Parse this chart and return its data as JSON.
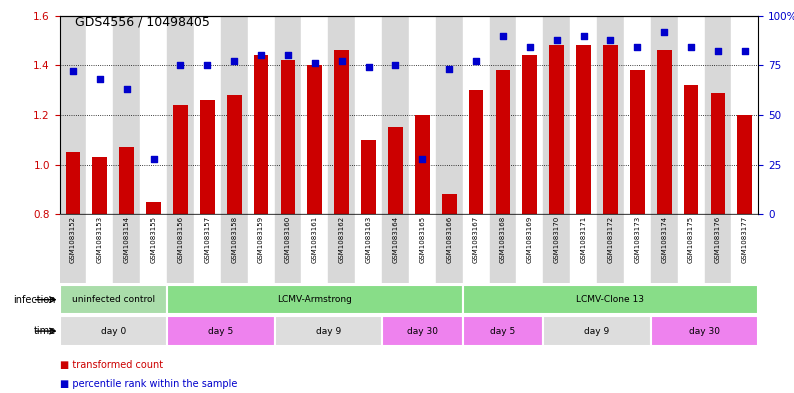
{
  "title": "GDS4556 / 10498405",
  "samples": [
    "GSM1083152",
    "GSM1083153",
    "GSM1083154",
    "GSM1083155",
    "GSM1083156",
    "GSM1083157",
    "GSM1083158",
    "GSM1083159",
    "GSM1083160",
    "GSM1083161",
    "GSM1083162",
    "GSM1083163",
    "GSM1083164",
    "GSM1083165",
    "GSM1083166",
    "GSM1083167",
    "GSM1083168",
    "GSM1083169",
    "GSM1083170",
    "GSM1083171",
    "GSM1083172",
    "GSM1083173",
    "GSM1083174",
    "GSM1083175",
    "GSM1083176",
    "GSM1083177"
  ],
  "bar_values": [
    1.05,
    1.03,
    1.07,
    0.85,
    1.24,
    1.26,
    1.28,
    1.44,
    1.42,
    1.4,
    1.46,
    1.1,
    1.15,
    1.2,
    0.88,
    1.3,
    1.38,
    1.44,
    1.48,
    1.48,
    1.48,
    1.38,
    1.46,
    1.32,
    1.29,
    1.2
  ],
  "scatter_values_pct": [
    72,
    68,
    63,
    28,
    75,
    75,
    77,
    80,
    80,
    76,
    77,
    74,
    75,
    28,
    73,
    77,
    90,
    84,
    88,
    90,
    88,
    84,
    92,
    84,
    82,
    82
  ],
  "bar_color": "#cc0000",
  "scatter_color": "#0000cc",
  "ylim_left": [
    0.8,
    1.6
  ],
  "ylim_right": [
    0,
    100
  ],
  "yticks_left": [
    0.8,
    1.0,
    1.2,
    1.4,
    1.6
  ],
  "yticks_right": [
    0,
    25,
    50,
    75,
    100
  ],
  "ytick_labels_right": [
    "0",
    "25",
    "50",
    "75",
    "100%"
  ],
  "inf_groups": [
    {
      "label": "uninfected control",
      "start": 0,
      "end": 3,
      "color": "#aaddaa"
    },
    {
      "label": "LCMV-Armstrong",
      "start": 4,
      "end": 14,
      "color": "#88dd88"
    },
    {
      "label": "LCMV-Clone 13",
      "start": 15,
      "end": 25,
      "color": "#88dd88"
    }
  ],
  "time_groups": [
    {
      "label": "day 0",
      "start": 0,
      "end": 3,
      "color": "#dddddd"
    },
    {
      "label": "day 5",
      "start": 4,
      "end": 7,
      "color": "#ee82ee"
    },
    {
      "label": "day 9",
      "start": 8,
      "end": 11,
      "color": "#dddddd"
    },
    {
      "label": "day 30",
      "start": 12,
      "end": 14,
      "color": "#ee82ee"
    },
    {
      "label": "day 5",
      "start": 15,
      "end": 17,
      "color": "#ee82ee"
    },
    {
      "label": "day 9",
      "start": 18,
      "end": 21,
      "color": "#dddddd"
    },
    {
      "label": "day 30",
      "start": 22,
      "end": 25,
      "color": "#ee82ee"
    }
  ],
  "legend": [
    {
      "label": "transformed count",
      "color": "#cc0000"
    },
    {
      "label": "percentile rank within the sample",
      "color": "#0000cc"
    }
  ],
  "bg_color_even": "#d8d8d8",
  "bg_color_odd": "#ffffff"
}
